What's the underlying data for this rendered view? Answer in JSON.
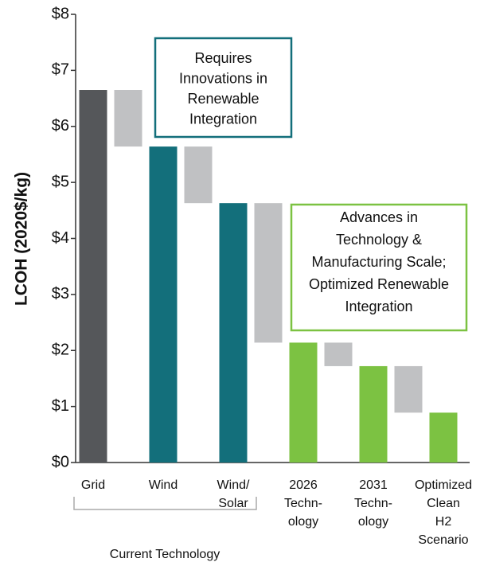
{
  "chart_data": {
    "type": "waterfall",
    "y_label": "LCOH (2020$/kg)",
    "categories": [
      [
        "Grid"
      ],
      [
        "Wind"
      ],
      [
        "Wind/",
        "Solar"
      ],
      [
        "2026",
        "Techn-",
        "ology"
      ],
      [
        "2031",
        "Techn-",
        "ology"
      ],
      [
        "Optimized",
        "Clean",
        "H2",
        "Scenario"
      ]
    ],
    "values": [
      6.65,
      5.64,
      4.63,
      2.14,
      1.72,
      0.89
    ],
    "colors": [
      "#55575a",
      "#136f7b",
      "#136f7b",
      "#7cc242",
      "#7cc242",
      "#7cc242"
    ],
    "steps": {
      "color": "#c0c1c3",
      "values": [
        1.01,
        1.01,
        2.49,
        0.42,
        0.83
      ]
    },
    "ylim": [
      0,
      8
    ],
    "yticks": [
      {
        "value": 0,
        "label": "$0"
      },
      {
        "value": 1,
        "label": "$1"
      },
      {
        "value": 2,
        "label": "$2"
      },
      {
        "value": 3,
        "label": "$3"
      },
      {
        "value": 4,
        "label": "$4"
      },
      {
        "value": 5,
        "label": "$5"
      },
      {
        "value": 6,
        "label": "$6"
      },
      {
        "value": 7,
        "label": "$7"
      },
      {
        "value": 8,
        "label": "$8"
      }
    ],
    "group_label": "Current Technology",
    "annotations": [
      {
        "lines": [
          "Requires",
          "Innovations in",
          "Renewable",
          "Integration"
        ],
        "color": "#136f7b"
      },
      {
        "lines": [
          "Advances in",
          "Technology &",
          "Manufacturing Scale;",
          "Optimized Renewable",
          "Integration"
        ],
        "color": "#7cc242"
      }
    ]
  }
}
